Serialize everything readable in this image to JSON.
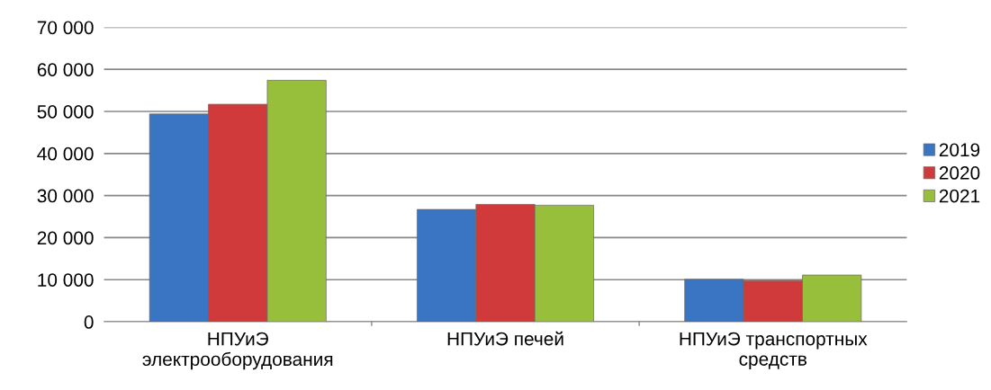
{
  "chart_data": {
    "type": "bar",
    "categories": [
      "НПУиЭ\nэлектрооборудования",
      "НПУиЭ печей",
      "НПУиЭ транспортных\nсредств"
    ],
    "series": [
      {
        "name": "2019",
        "color": "#3a75c4",
        "values": [
          49400,
          26700,
          10100
        ]
      },
      {
        "name": "2020",
        "color": "#d03a3a",
        "values": [
          51700,
          27900,
          9800
        ]
      },
      {
        "name": "2021",
        "color": "#97bf3c",
        "values": [
          57400,
          27700,
          11100
        ]
      }
    ],
    "ylim": [
      0,
      70000
    ],
    "yticks": [
      {
        "value": 0,
        "label": "0"
      },
      {
        "value": 10000,
        "label": "10 000"
      },
      {
        "value": 20000,
        "label": "20 000"
      },
      {
        "value": 30000,
        "label": "30 000"
      },
      {
        "value": 40000,
        "label": "40 000"
      },
      {
        "value": 50000,
        "label": "50 000"
      },
      {
        "value": 60000,
        "label": "60 000"
      },
      {
        "value": 70000,
        "label": "70 000"
      }
    ],
    "grid": "y",
    "legend": "right"
  }
}
